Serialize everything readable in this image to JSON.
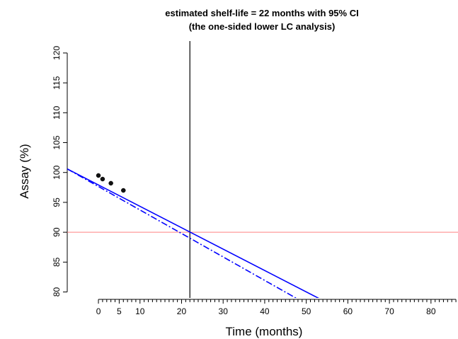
{
  "chart_data": {
    "type": "line",
    "title_lines": [
      "estimated shelf-life = 22 months with 95% CI",
      "(the one-sided lower LC analysis)"
    ],
    "xlabel": "Time (months)",
    "ylabel": "Assay (%)",
    "xlim": [
      -7.5,
      86.5
    ],
    "ylim": [
      79,
      122
    ],
    "x_ticks": [
      0,
      5,
      10,
      20,
      30,
      40,
      50,
      60,
      70,
      80
    ],
    "x_tick_labels": [
      "0",
      "5",
      "10",
      "20",
      "30",
      "40",
      "50",
      "60",
      "70",
      "80"
    ],
    "y_ticks": [
      80,
      85,
      90,
      95,
      100,
      105,
      110,
      115,
      120
    ],
    "y_tick_labels": [
      "80",
      "85",
      "90",
      "95",
      "100",
      "105",
      "110",
      "115",
      "120"
    ],
    "minor_x_tick_step": 1,
    "points": [
      {
        "x": 0,
        "y": 99.5
      },
      {
        "x": 1,
        "y": 98.9
      },
      {
        "x": 3,
        "y": 98.2
      },
      {
        "x": 6,
        "y": 97.0
      }
    ],
    "series": [
      {
        "style": "solid",
        "color": "#0000ff",
        "x": [
          -7.5,
          54.5
        ],
        "y": [
          100.6,
          78.4
        ]
      },
      {
        "style": "dashdot",
        "color": "#0000ff",
        "x": [
          -7.5,
          49
        ],
        "y": [
          100.6,
          78.4
        ]
      }
    ],
    "shelf_life_vline": {
      "x": 22,
      "color": "#000000"
    },
    "spec_limit_hline": {
      "y": 90,
      "color": "#ff8080"
    }
  }
}
